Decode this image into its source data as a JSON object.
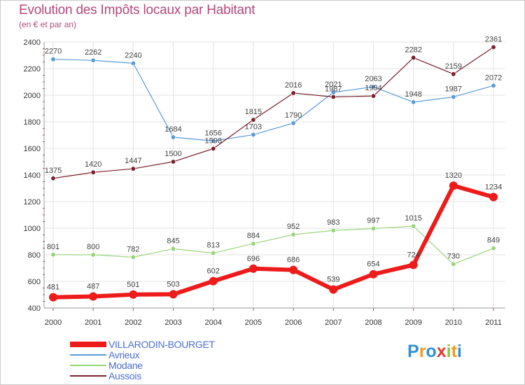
{
  "header": {
    "title": "Evolution des Impôts locaux par Habitant",
    "subtitle": "(en € et par an)"
  },
  "chart_data": {
    "type": "line",
    "title": "Evolution des Impôts locaux par Habitant",
    "subtitle": "(en € et par an)",
    "x": [
      "2000",
      "2001",
      "2002",
      "2003",
      "2004",
      "2005",
      "2006",
      "2007",
      "2008",
      "2009",
      "2010",
      "2011"
    ],
    "ylim": [
      400,
      2400
    ],
    "yticks": [
      "400",
      "600",
      "800",
      "1000",
      "1200",
      "1400",
      "1600",
      "1800",
      "2000",
      "2200",
      "2400"
    ],
    "grid": true,
    "legend": "bottom-left",
    "series": [
      {
        "name": "Avrieux",
        "color": "#5b9bd5",
        "values": [
          2270,
          2262,
          2240,
          1684,
          1656,
          1703,
          1790,
          2021,
          2063,
          1948,
          1987,
          2072
        ],
        "labels": [
          "2270",
          "2262",
          "2240",
          "1684",
          "1656",
          "1703",
          "1790",
          "2021",
          "2063",
          "1948",
          "1987",
          "2072"
        ]
      },
      {
        "name": "Aussois",
        "color": "#7a1f2b",
        "values": [
          1375,
          1420,
          1447,
          1500,
          1598,
          1815,
          2016,
          1987,
          1994,
          2282,
          2159,
          2361
        ],
        "labels": [
          "1375",
          "1420",
          "1447",
          "1500",
          "1598",
          "1815",
          "2016",
          "1987",
          "1994",
          "2282",
          "2159",
          "2361"
        ]
      },
      {
        "name": "Modane",
        "color": "#99d47a",
        "values": [
          801,
          800,
          782,
          845,
          813,
          884,
          952,
          983,
          997,
          1015,
          730,
          849
        ],
        "labels": [
          "801",
          "800",
          "782",
          "845",
          "813",
          "884",
          "952",
          "983",
          "997",
          "1015",
          "730",
          "849"
        ]
      },
      {
        "name": "VILLARODIN-BOURGET",
        "color": "#ee1b1b",
        "values": [
          481,
          487,
          501,
          503,
          602,
          696,
          686,
          539,
          654,
          724,
          1320,
          1234
        ],
        "labels": [
          "481",
          "487",
          "501",
          "503",
          "602",
          "696",
          "686",
          "539",
          "654",
          "724",
          "1320",
          "1234"
        ]
      }
    ]
  },
  "legend": [
    {
      "label": "VILLARODIN-BOURGET",
      "color": "#ee1b1b",
      "text_color": "#4a6fd6"
    },
    {
      "label": "Avrieux",
      "color": "#5b9bd5",
      "text_color": "#4a6fd6"
    },
    {
      "label": "Modane",
      "color": "#99d47a",
      "text_color": "#4a6fd6"
    },
    {
      "label": "Aussois",
      "color": "#7a1f2b",
      "text_color": "#4a6fd6"
    }
  ],
  "logo": {
    "text": "Proxiti",
    "letters": [
      {
        "ch": "P",
        "color": "#2f8fd6"
      },
      {
        "ch": "r",
        "color": "#f29b1e"
      },
      {
        "ch": "o",
        "color": "#2f8fd6"
      },
      {
        "ch": "x",
        "color": "#e23c2e"
      },
      {
        "ch": "i",
        "color": "#8cc63f"
      },
      {
        "ch": "t",
        "color": "#f29b1e"
      },
      {
        "ch": "i",
        "color": "#2f8fd6"
      }
    ]
  }
}
